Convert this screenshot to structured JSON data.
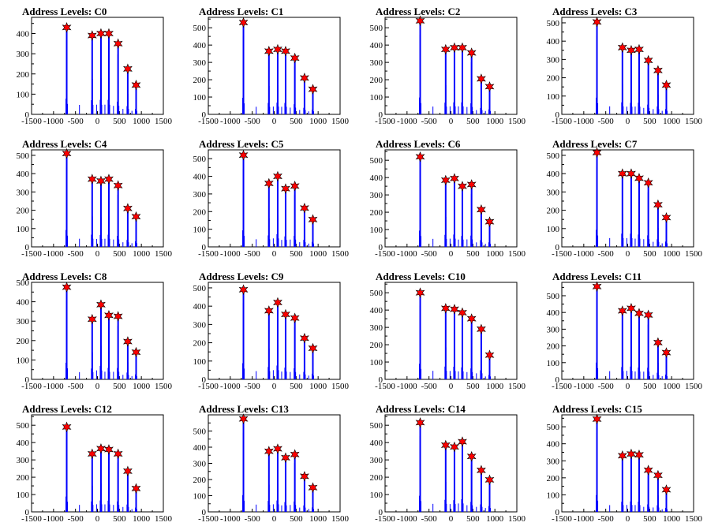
{
  "chart_data": [
    {
      "type": "histogram",
      "title": "Address Levels: C0",
      "xlim": [
        -1500,
        1500
      ],
      "ylim": [
        0,
        480
      ],
      "yticks": [
        0,
        100,
        200,
        300,
        400
      ],
      "xticks": [
        -1500,
        -1000,
        -500,
        0,
        500,
        1000,
        1500
      ],
      "peaks": [
        {
          "x": -700,
          "y": 430
        },
        {
          "x": -120,
          "y": 390
        },
        {
          "x": 80,
          "y": 400
        },
        {
          "x": 260,
          "y": 400
        },
        {
          "x": 470,
          "y": 350
        },
        {
          "x": 690,
          "y": 225
        },
        {
          "x": 880,
          "y": 145
        }
      ]
    },
    {
      "type": "histogram",
      "title": "Address Levels: C1",
      "xlim": [
        -1500,
        1500
      ],
      "ylim": [
        0,
        560
      ],
      "yticks": [
        0,
        100,
        200,
        300,
        400,
        500
      ],
      "xticks": [
        -1500,
        -1000,
        -500,
        0,
        500,
        1000,
        1500
      ],
      "peaks": [
        {
          "x": -700,
          "y": 530
        },
        {
          "x": -120,
          "y": 365
        },
        {
          "x": 80,
          "y": 375
        },
        {
          "x": 260,
          "y": 365
        },
        {
          "x": 470,
          "y": 325
        },
        {
          "x": 690,
          "y": 210
        },
        {
          "x": 880,
          "y": 145
        }
      ]
    },
    {
      "type": "histogram",
      "title": "Address Levels: C2",
      "xlim": [
        -1500,
        1500
      ],
      "ylim": [
        0,
        560
      ],
      "yticks": [
        0,
        100,
        200,
        300,
        400,
        500
      ],
      "xticks": [
        -1500,
        -1000,
        -500,
        0,
        500,
        1000,
        1500
      ],
      "peaks": [
        {
          "x": -700,
          "y": 540
        },
        {
          "x": -120,
          "y": 375
        },
        {
          "x": 80,
          "y": 385
        },
        {
          "x": 260,
          "y": 385
        },
        {
          "x": 470,
          "y": 355
        },
        {
          "x": 690,
          "y": 205
        },
        {
          "x": 880,
          "y": 160
        }
      ]
    },
    {
      "type": "histogram",
      "title": "Address Levels: C3",
      "xlim": [
        -1500,
        1500
      ],
      "ylim": [
        0,
        530
      ],
      "yticks": [
        0,
        100,
        200,
        300,
        400,
        500
      ],
      "xticks": [
        -1500,
        -1000,
        -500,
        0,
        500,
        1000,
        1500
      ],
      "peaks": [
        {
          "x": -700,
          "y": 505
        },
        {
          "x": -120,
          "y": 365
        },
        {
          "x": 80,
          "y": 350
        },
        {
          "x": 260,
          "y": 355
        },
        {
          "x": 470,
          "y": 295
        },
        {
          "x": 690,
          "y": 240
        },
        {
          "x": 880,
          "y": 160
        }
      ]
    },
    {
      "type": "histogram",
      "title": "Address Levels: C4",
      "xlim": [
        -1500,
        1500
      ],
      "ylim": [
        0,
        530
      ],
      "yticks": [
        0,
        100,
        200,
        300,
        400,
        500
      ],
      "xticks": [
        -1500,
        -1000,
        -500,
        0,
        500,
        1000,
        1500
      ],
      "peaks": [
        {
          "x": -700,
          "y": 510
        },
        {
          "x": -120,
          "y": 370
        },
        {
          "x": 80,
          "y": 360
        },
        {
          "x": 260,
          "y": 370
        },
        {
          "x": 470,
          "y": 335
        },
        {
          "x": 690,
          "y": 210
        },
        {
          "x": 880,
          "y": 165
        }
      ]
    },
    {
      "type": "histogram",
      "title": "Address Levels: C5",
      "xlim": [
        -1500,
        1500
      ],
      "ylim": [
        0,
        550
      ],
      "yticks": [
        0,
        100,
        200,
        300,
        400,
        500
      ],
      "xticks": [
        -1500,
        -1000,
        -500,
        0,
        500,
        1000,
        1500
      ],
      "peaks": [
        {
          "x": -700,
          "y": 520
        },
        {
          "x": -120,
          "y": 360
        },
        {
          "x": 80,
          "y": 400
        },
        {
          "x": 260,
          "y": 330
        },
        {
          "x": 470,
          "y": 345
        },
        {
          "x": 690,
          "y": 220
        },
        {
          "x": 880,
          "y": 155
        }
      ]
    },
    {
      "type": "histogram",
      "title": "Address Levels: C6",
      "xlim": [
        -1500,
        1500
      ],
      "ylim": [
        0,
        560
      ],
      "yticks": [
        0,
        100,
        200,
        300,
        400,
        500
      ],
      "xticks": [
        -1500,
        -1000,
        -500,
        0,
        500,
        1000,
        1500
      ],
      "peaks": [
        {
          "x": -700,
          "y": 520
        },
        {
          "x": -120,
          "y": 385
        },
        {
          "x": 80,
          "y": 395
        },
        {
          "x": 260,
          "y": 350
        },
        {
          "x": 470,
          "y": 360
        },
        {
          "x": 690,
          "y": 215
        },
        {
          "x": 880,
          "y": 145
        }
      ]
    },
    {
      "type": "histogram",
      "title": "Address Levels: C7",
      "xlim": [
        -1500,
        1500
      ],
      "ylim": [
        0,
        530
      ],
      "yticks": [
        0,
        100,
        200,
        300,
        400,
        500
      ],
      "xticks": [
        -1500,
        -1000,
        -500,
        0,
        500,
        1000,
        1500
      ],
      "peaks": [
        {
          "x": -700,
          "y": 515
        },
        {
          "x": -120,
          "y": 400
        },
        {
          "x": 80,
          "y": 400
        },
        {
          "x": 260,
          "y": 375
        },
        {
          "x": 470,
          "y": 350
        },
        {
          "x": 690,
          "y": 230
        },
        {
          "x": 880,
          "y": 160
        }
      ]
    },
    {
      "type": "histogram",
      "title": "Address Levels: C8",
      "xlim": [
        -1500,
        1500
      ],
      "ylim": [
        0,
        500
      ],
      "yticks": [
        0,
        100,
        200,
        300,
        400,
        500
      ],
      "xticks": [
        -1500,
        -1000,
        -500,
        0,
        500,
        1000,
        1500
      ],
      "peaks": [
        {
          "x": -700,
          "y": 475
        },
        {
          "x": -120,
          "y": 310
        },
        {
          "x": 80,
          "y": 385
        },
        {
          "x": 260,
          "y": 330
        },
        {
          "x": 470,
          "y": 325
        },
        {
          "x": 690,
          "y": 195
        },
        {
          "x": 880,
          "y": 140
        }
      ]
    },
    {
      "type": "histogram",
      "title": "Address Levels: C9",
      "xlim": [
        -1500,
        1500
      ],
      "ylim": [
        0,
        530
      ],
      "yticks": [
        0,
        100,
        200,
        300,
        400,
        500
      ],
      "xticks": [
        -1500,
        -1000,
        -500,
        0,
        500,
        1000,
        1500
      ],
      "peaks": [
        {
          "x": -700,
          "y": 490
        },
        {
          "x": -120,
          "y": 375
        },
        {
          "x": 80,
          "y": 420
        },
        {
          "x": 260,
          "y": 355
        },
        {
          "x": 470,
          "y": 335
        },
        {
          "x": 690,
          "y": 225
        },
        {
          "x": 880,
          "y": 170
        }
      ]
    },
    {
      "type": "histogram",
      "title": "Address Levels: C10",
      "xlim": [
        -1500,
        1500
      ],
      "ylim": [
        0,
        560
      ],
      "yticks": [
        0,
        100,
        200,
        300,
        400,
        500
      ],
      "xticks": [
        -1500,
        -1000,
        -500,
        0,
        500,
        1000,
        1500
      ],
      "peaks": [
        {
          "x": -700,
          "y": 500
        },
        {
          "x": -120,
          "y": 410
        },
        {
          "x": 80,
          "y": 405
        },
        {
          "x": 260,
          "y": 385
        },
        {
          "x": 470,
          "y": 350
        },
        {
          "x": 690,
          "y": 290
        },
        {
          "x": 880,
          "y": 140
        }
      ]
    },
    {
      "type": "histogram",
      "title": "Address Levels: C11",
      "xlim": [
        -1500,
        1500
      ],
      "ylim": [
        0,
        580
      ],
      "yticks": [
        0,
        100,
        200,
        300,
        400,
        500
      ],
      "xticks": [
        -1500,
        -1000,
        -500,
        0,
        500,
        1000,
        1500
      ],
      "peaks": [
        {
          "x": -700,
          "y": 555
        },
        {
          "x": -120,
          "y": 410
        },
        {
          "x": 80,
          "y": 425
        },
        {
          "x": 260,
          "y": 395
        },
        {
          "x": 470,
          "y": 385
        },
        {
          "x": 690,
          "y": 220
        },
        {
          "x": 880,
          "y": 160
        }
      ]
    },
    {
      "type": "histogram",
      "title": "Address Levels: C12",
      "xlim": [
        -1500,
        1500
      ],
      "ylim": [
        0,
        560
      ],
      "yticks": [
        0,
        100,
        200,
        300,
        400,
        500
      ],
      "xticks": [
        -1500,
        -1000,
        -500,
        0,
        500,
        1000,
        1500
      ],
      "peaks": [
        {
          "x": -700,
          "y": 490
        },
        {
          "x": -120,
          "y": 335
        },
        {
          "x": 80,
          "y": 365
        },
        {
          "x": 260,
          "y": 360
        },
        {
          "x": 470,
          "y": 335
        },
        {
          "x": 690,
          "y": 235
        },
        {
          "x": 880,
          "y": 135
        }
      ]
    },
    {
      "type": "histogram",
      "title": "Address Levels: C13",
      "xlim": [
        -1500,
        1500
      ],
      "ylim": [
        0,
        600
      ],
      "yticks": [
        0,
        100,
        200,
        300,
        400,
        500
      ],
      "xticks": [
        -1500,
        -1000,
        -500,
        0,
        500,
        1000,
        1500
      ],
      "peaks": [
        {
          "x": -700,
          "y": 575
        },
        {
          "x": -120,
          "y": 375
        },
        {
          "x": 80,
          "y": 390
        },
        {
          "x": 260,
          "y": 335
        },
        {
          "x": 470,
          "y": 355
        },
        {
          "x": 690,
          "y": 220
        },
        {
          "x": 880,
          "y": 150
        }
      ]
    },
    {
      "type": "histogram",
      "title": "Address Levels: C14",
      "xlim": [
        -1500,
        1500
      ],
      "ylim": [
        0,
        560
      ],
      "yticks": [
        0,
        100,
        200,
        300,
        400,
        500
      ],
      "xticks": [
        -1500,
        -1000,
        -500,
        0,
        500,
        1000,
        1500
      ],
      "peaks": [
        {
          "x": -700,
          "y": 515
        },
        {
          "x": -120,
          "y": 385
        },
        {
          "x": 80,
          "y": 375
        },
        {
          "x": 260,
          "y": 405
        },
        {
          "x": 470,
          "y": 320
        },
        {
          "x": 690,
          "y": 240
        },
        {
          "x": 880,
          "y": 185
        }
      ]
    },
    {
      "type": "histogram",
      "title": "Address Levels: C15",
      "xlim": [
        -1500,
        1500
      ],
      "ylim": [
        0,
        570
      ],
      "yticks": [
        0,
        100,
        200,
        300,
        400,
        500
      ],
      "xticks": [
        -1500,
        -1000,
        -500,
        0,
        500,
        1000,
        1500
      ],
      "peaks": [
        {
          "x": -700,
          "y": 545
        },
        {
          "x": -120,
          "y": 330
        },
        {
          "x": 80,
          "y": 340
        },
        {
          "x": 260,
          "y": 335
        },
        {
          "x": 470,
          "y": 245
        },
        {
          "x": 690,
          "y": 215
        },
        {
          "x": 880,
          "y": 130
        }
      ]
    }
  ],
  "style": {
    "bar_color": "#0000ff",
    "marker_color": "#ff0000",
    "axis_color": "#000000"
  }
}
